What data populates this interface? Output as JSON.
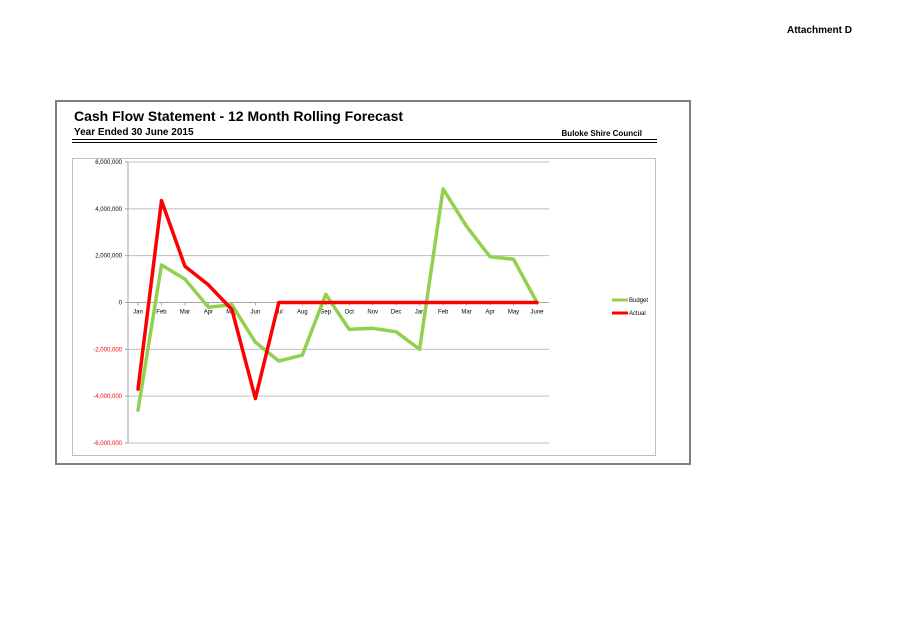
{
  "page": {
    "attachment": "Attachment D",
    "title": "Cash Flow Statement - 12 Month Rolling Forecast",
    "subtitle": "Year Ended 30 June 2015",
    "org": "Buloke Shire Council"
  },
  "colors": {
    "budget": "#92d050",
    "actual": "#ff0000",
    "negative_tick": "#ff0000",
    "gridline": "#bfbfbf"
  },
  "chart_data": {
    "type": "line",
    "title": "",
    "xlabel": "",
    "ylabel": "",
    "categories": [
      "Jan",
      "Feb",
      "Mar",
      "Apr",
      "May",
      "Jun",
      "Jul",
      "Aug",
      "Sep",
      "Oct",
      "Nov",
      "Dec",
      "Jan",
      "Feb",
      "Mar",
      "Apr",
      "May",
      "June"
    ],
    "ylim": [
      -6000000,
      6000000
    ],
    "yticks": [
      6000000,
      4000000,
      2000000,
      0,
      -2000000,
      -4000000,
      -6000000
    ],
    "ytick_labels": [
      "6,000,000",
      "4,000,000",
      "2,000,000",
      "0",
      "-2,000,000",
      "-4,000,000",
      "-6,000,000"
    ],
    "grid": true,
    "legend": "right",
    "series": [
      {
        "name": "Budget",
        "values": [
          -4600000,
          1600000,
          1000000,
          -200000,
          -100000,
          -1700000,
          -2500000,
          -2250000,
          350000,
          -1150000,
          -1100000,
          -1250000,
          -2000000,
          4850000,
          3250000,
          1950000,
          1850000,
          0
        ]
      },
      {
        "name": "Actual",
        "values": [
          -3700000,
          4350000,
          1550000,
          750000,
          -300000,
          -4100000,
          0,
          0,
          0,
          0,
          0,
          0,
          0,
          0,
          0,
          0,
          0,
          0
        ]
      }
    ]
  }
}
